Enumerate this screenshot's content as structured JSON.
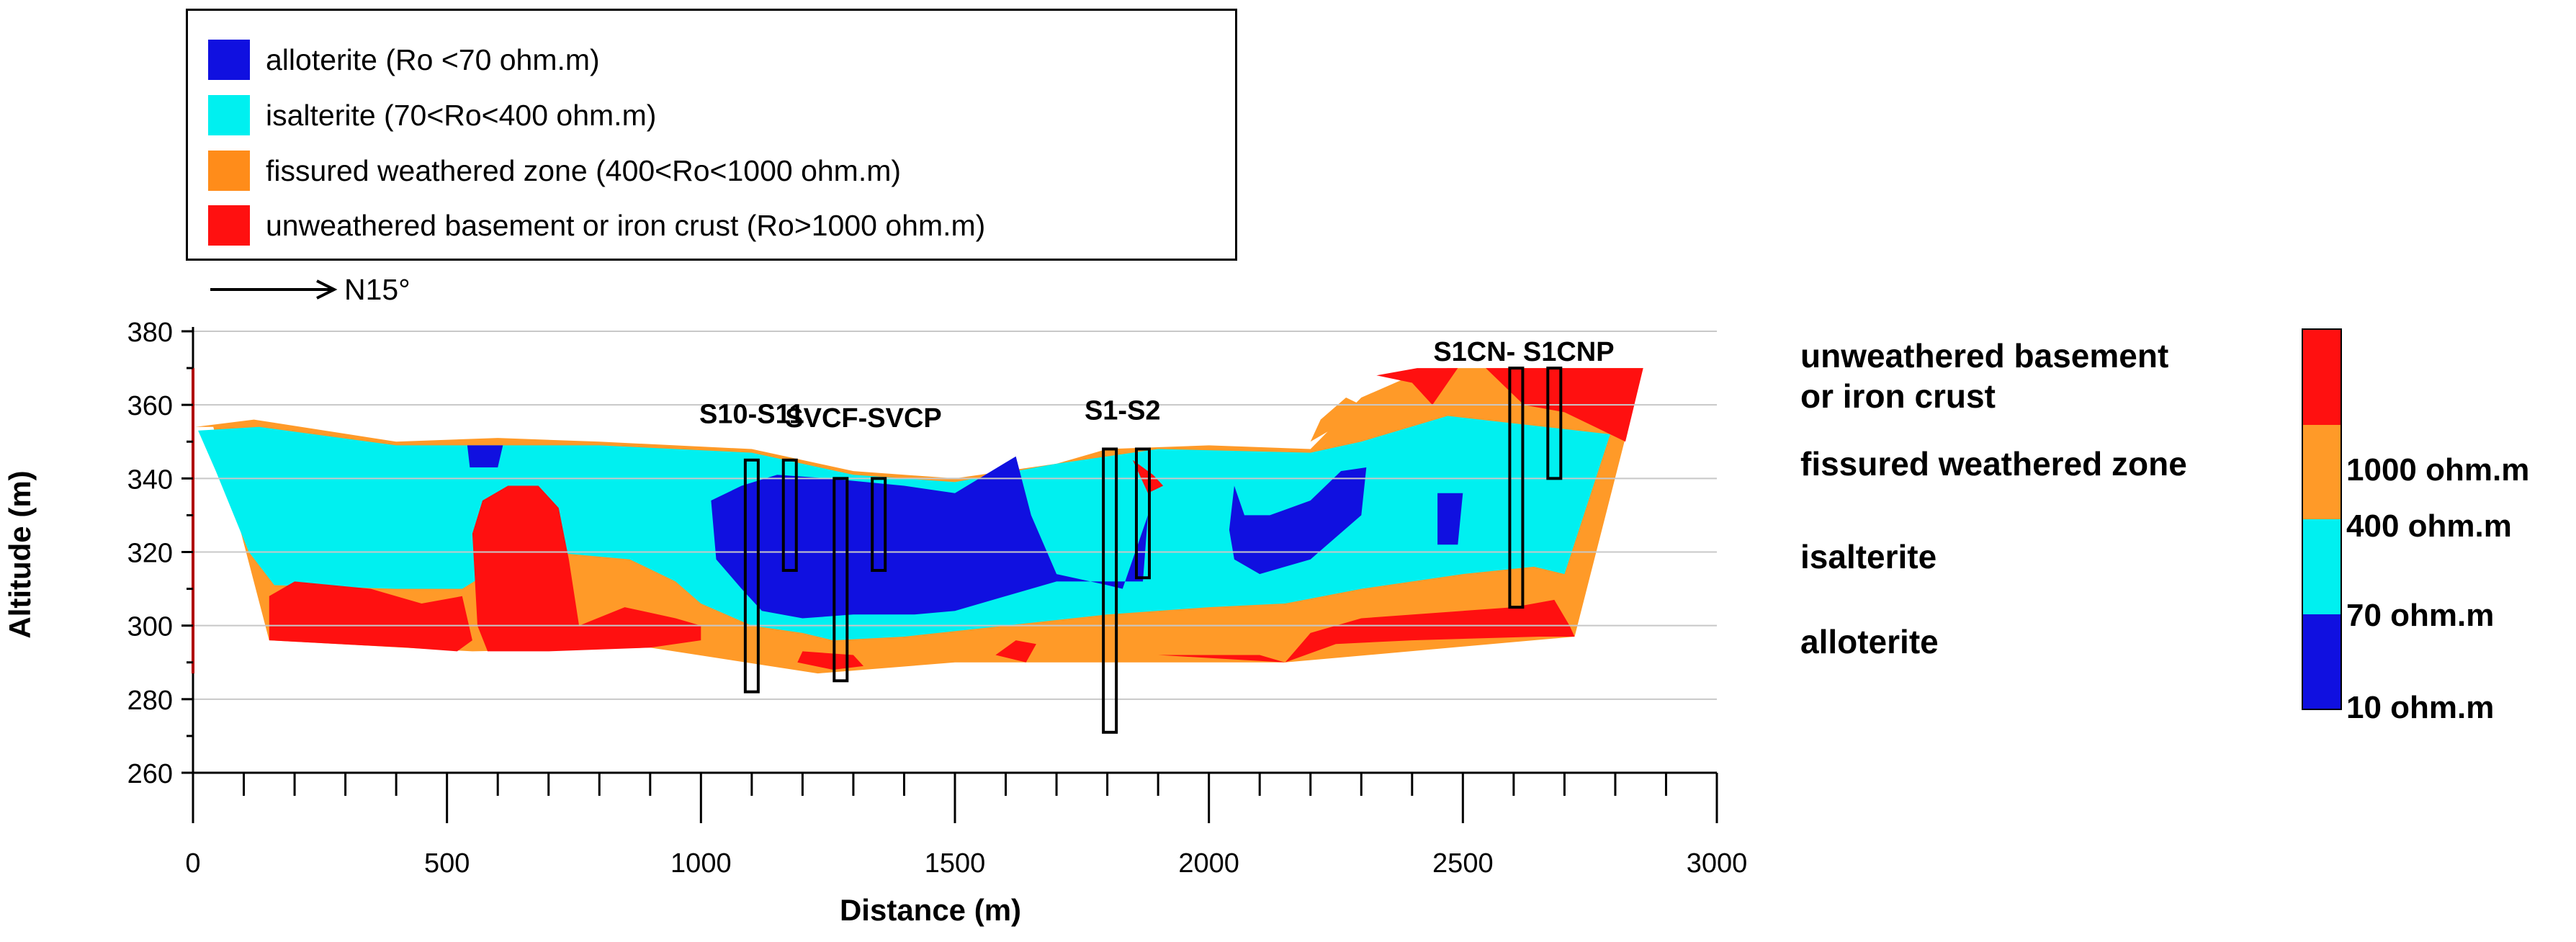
{
  "legend": {
    "items": [
      {
        "label": "alloterite (Ro <70 ohm.m)",
        "color": "#1010e0"
      },
      {
        "label": "isalterite (70<Ro<400 ohm.m)",
        "color": "#00f0f0"
      },
      {
        "label": "fissured weathered zone (400<Ro<1000 ohm.m)",
        "color": "#ff8c1a"
      },
      {
        "label": "unweathered basement or iron crust (Ro>1000 ohm.m)",
        "color": "#ff1010"
      }
    ]
  },
  "orientation": {
    "label": "N15°"
  },
  "classes": {
    "unweathered_line1": "unweathered basement",
    "unweathered_line2": "or iron crust",
    "fissured": "fissured weathered zone",
    "isalterite": "isalterite",
    "alloterite": "alloterite"
  },
  "colorbar": {
    "labels": [
      "1000 ohm.m",
      "400 ohm.m",
      "70 ohm.m",
      "10 ohm.m"
    ],
    "colors": [
      "#ff1010",
      "#ff9a28",
      "#00f0f0",
      "#1010e0"
    ]
  },
  "chart_data": {
    "type": "heatmap",
    "title": "",
    "xlabel": "Distance (m)",
    "ylabel": "Altitude (m)",
    "xlim": [
      0,
      3000
    ],
    "ylim": [
      260,
      380
    ],
    "x_ticks": [
      0,
      500,
      1000,
      1500,
      2000,
      2500,
      3000
    ],
    "y_ticks": [
      260,
      280,
      300,
      320,
      340,
      360,
      380
    ],
    "boreholes": [
      {
        "label": "S10-S11",
        "label_x": 1100,
        "label_y": 355,
        "wells": [
          {
            "x": 1100,
            "top": 345,
            "bottom": 282
          },
          {
            "x": 1175,
            "top": 345,
            "bottom": 315
          }
        ]
      },
      {
        "label": "SVCF-SVCP",
        "label_x": 1320,
        "label_y": 354,
        "wells": [
          {
            "x": 1275,
            "top": 340,
            "bottom": 285
          },
          {
            "x": 1350,
            "top": 340,
            "bottom": 315
          }
        ]
      },
      {
        "label": "S1-S2",
        "label_x": 1830,
        "label_y": 356,
        "wells": [
          {
            "x": 1805,
            "top": 348,
            "bottom": 271
          },
          {
            "x": 1870,
            "top": 348,
            "bottom": 313
          }
        ]
      },
      {
        "label": "S1CN- S1CNP",
        "label_x": 2620,
        "label_y": 372,
        "wells": [
          {
            "x": 2605,
            "top": 370,
            "bottom": 305
          },
          {
            "x": 2680,
            "top": 370,
            "bottom": 340
          }
        ]
      }
    ],
    "zones": {
      "section_outline": [
        [
          5,
          354
        ],
        [
          40,
          354
        ],
        [
          150,
          296
        ],
        [
          550,
          293
        ],
        [
          900,
          294
        ],
        [
          1230,
          287
        ],
        [
          1500,
          290
        ],
        [
          2150,
          290
        ],
        [
          2720,
          297
        ],
        [
          2855,
          370
        ],
        [
          2470,
          370
        ],
        [
          2400,
          368
        ],
        [
          2300,
          362
        ],
        [
          2200,
          348
        ],
        [
          2000,
          349
        ],
        [
          1800,
          348
        ],
        [
          1700,
          344
        ],
        [
          1500,
          340
        ],
        [
          1300,
          342
        ],
        [
          1100,
          348
        ],
        [
          800,
          350
        ],
        [
          600,
          351
        ],
        [
          400,
          350
        ],
        [
          120,
          356
        ]
      ],
      "fissured": [
        [
          5,
          354
        ],
        [
          40,
          354
        ],
        [
          150,
          296
        ],
        [
          550,
          293
        ],
        [
          900,
          294
        ],
        [
          1230,
          287
        ],
        [
          1500,
          290
        ],
        [
          2150,
          290
        ],
        [
          2720,
          297
        ],
        [
          2855,
          370
        ],
        [
          2470,
          370
        ],
        [
          2400,
          368
        ],
        [
          2300,
          362
        ],
        [
          2200,
          348
        ],
        [
          2000,
          349
        ],
        [
          1800,
          348
        ],
        [
          1700,
          344
        ],
        [
          1500,
          340
        ],
        [
          1300,
          342
        ],
        [
          1100,
          348
        ],
        [
          800,
          350
        ],
        [
          600,
          351
        ],
        [
          400,
          350
        ],
        [
          120,
          356
        ]
      ],
      "isalterite": [
        [
          10,
          353
        ],
        [
          45,
          342
        ],
        [
          110,
          320
        ],
        [
          160,
          311
        ],
        [
          400,
          310
        ],
        [
          530,
          310
        ],
        [
          600,
          316
        ],
        [
          700,
          320
        ],
        [
          860,
          318
        ],
        [
          950,
          312
        ],
        [
          1000,
          306
        ],
        [
          1100,
          300
        ],
        [
          1200,
          298
        ],
        [
          1260,
          296
        ],
        [
          1400,
          297
        ],
        [
          1600,
          300
        ],
        [
          1800,
          303
        ],
        [
          2000,
          305
        ],
        [
          2150,
          306
        ],
        [
          2300,
          310
        ],
        [
          2500,
          314
        ],
        [
          2640,
          316
        ],
        [
          2700,
          314
        ],
        [
          2790,
          352
        ],
        [
          2470,
          357
        ],
        [
          2300,
          350
        ],
        [
          2200,
          347
        ],
        [
          1900,
          348
        ],
        [
          1700,
          344
        ],
        [
          1500,
          339
        ],
        [
          1300,
          341
        ],
        [
          1100,
          347
        ],
        [
          800,
          349
        ],
        [
          400,
          349
        ],
        [
          130,
          354
        ]
      ],
      "alloterite": [
        [
          [
            1020,
            334
          ],
          [
            1080,
            338
          ],
          [
            1150,
            341
          ],
          [
            1250,
            340
          ],
          [
            1400,
            338
          ],
          [
            1500,
            336
          ],
          [
            1620,
            346
          ],
          [
            1650,
            330
          ],
          [
            1700,
            314
          ],
          [
            1800,
            311
          ],
          [
            1830,
            310
          ],
          [
            1880,
            330
          ],
          [
            1870,
            312
          ],
          [
            1770,
            312
          ],
          [
            1700,
            312
          ],
          [
            1600,
            308
          ],
          [
            1500,
            304
          ],
          [
            1420,
            303
          ],
          [
            1300,
            303
          ],
          [
            1200,
            302
          ],
          [
            1120,
            304
          ],
          [
            1080,
            310
          ],
          [
            1030,
            318
          ]
        ],
        [
          [
            2050,
            338
          ],
          [
            2070,
            330
          ],
          [
            2120,
            330
          ],
          [
            2200,
            334
          ],
          [
            2260,
            342
          ],
          [
            2310,
            343
          ],
          [
            2300,
            330
          ],
          [
            2200,
            318
          ],
          [
            2100,
            314
          ],
          [
            2050,
            318
          ],
          [
            2040,
            326
          ]
        ],
        [
          [
            2450,
            336
          ],
          [
            2500,
            336
          ],
          [
            2490,
            322
          ],
          [
            2450,
            322
          ]
        ],
        [
          [
            540,
            349
          ],
          [
            610,
            349
          ],
          [
            600,
            343
          ],
          [
            545,
            343
          ]
        ]
      ],
      "basement": [
        [
          [
            150,
            296
          ],
          [
            420,
            294
          ],
          [
            520,
            293
          ],
          [
            550,
            296
          ],
          [
            530,
            308
          ],
          [
            450,
            306
          ],
          [
            350,
            310
          ],
          [
            200,
            312
          ],
          [
            150,
            308
          ]
        ],
        [
          [
            550,
            325
          ],
          [
            570,
            334
          ],
          [
            620,
            338
          ],
          [
            680,
            338
          ],
          [
            720,
            332
          ],
          [
            740,
            318
          ],
          [
            760,
            300
          ],
          [
            850,
            305
          ],
          [
            950,
            302
          ],
          [
            1000,
            300
          ],
          [
            1000,
            296
          ],
          [
            900,
            294
          ],
          [
            700,
            293
          ],
          [
            580,
            293
          ],
          [
            560,
            300
          ]
        ],
        [
          [
            1190,
            290
          ],
          [
            1260,
            288
          ],
          [
            1320,
            289
          ],
          [
            1300,
            292
          ],
          [
            1200,
            293
          ]
        ],
        [
          [
            1580,
            292
          ],
          [
            1620,
            296
          ],
          [
            1660,
            295
          ],
          [
            1640,
            290
          ]
        ],
        [
          [
            1900,
            292
          ],
          [
            2100,
            292
          ],
          [
            2150,
            290
          ],
          [
            2200,
            298
          ],
          [
            2300,
            302
          ],
          [
            2500,
            304
          ],
          [
            2600,
            305
          ],
          [
            2680,
            307
          ],
          [
            2710,
            300
          ],
          [
            2720,
            297
          ],
          [
            2650,
            297
          ],
          [
            2400,
            296
          ],
          [
            2250,
            295
          ],
          [
            2150,
            290
          ]
        ],
        [
          [
            2330,
            368
          ],
          [
            2400,
            366
          ],
          [
            2440,
            360
          ],
          [
            2490,
            370
          ],
          [
            2410,
            370
          ]
        ],
        [
          [
            2545,
            370
          ],
          [
            2620,
            360
          ],
          [
            2700,
            358
          ],
          [
            2760,
            354
          ],
          [
            2820,
            350
          ],
          [
            2855,
            370
          ]
        ],
        [
          [
            1850,
            345
          ],
          [
            1890,
            341
          ],
          [
            1910,
            338
          ],
          [
            1880,
            336
          ]
        ]
      ],
      "fissured_patches": [
        [
          [
            2200,
            350
          ],
          [
            2250,
            354
          ],
          [
            2300,
            360
          ],
          [
            2270,
            362
          ],
          [
            2220,
            356
          ]
        ],
        [
          [
            2520,
            362
          ],
          [
            2560,
            366
          ],
          [
            2590,
            362
          ],
          [
            2550,
            358
          ]
        ]
      ]
    }
  }
}
